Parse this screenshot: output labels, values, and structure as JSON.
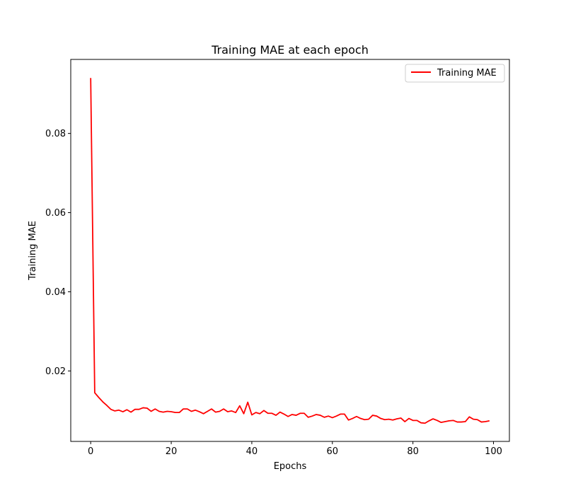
{
  "chart_data": {
    "type": "line",
    "title": "Training MAE at each epoch",
    "xlabel": "Epochs",
    "ylabel": "Training MAE",
    "xlim": [
      -4.95,
      103.95
    ],
    "ylim": [
      0.0022,
      0.0987
    ],
    "xticks": [
      0,
      20,
      40,
      60,
      80,
      100
    ],
    "xtick_labels": [
      "0",
      "20",
      "40",
      "60",
      "80",
      "100"
    ],
    "yticks": [
      0.02,
      0.04,
      0.06,
      0.08
    ],
    "ytick_labels": [
      "0.02",
      "0.04",
      "0.06",
      "0.08"
    ],
    "grid": false,
    "legend_position": "top-right",
    "series": [
      {
        "name": "Training MAE",
        "color": "#ff0000",
        "x": [
          0,
          1,
          2,
          3,
          4,
          5,
          6,
          7,
          8,
          9,
          10,
          11,
          12,
          13,
          14,
          15,
          16,
          17,
          18,
          19,
          20,
          21,
          22,
          23,
          24,
          25,
          26,
          27,
          28,
          29,
          30,
          31,
          32,
          33,
          34,
          35,
          36,
          37,
          38,
          39,
          40,
          41,
          42,
          43,
          44,
          45,
          46,
          47,
          48,
          49,
          50,
          51,
          52,
          53,
          54,
          55,
          56,
          57,
          58,
          59,
          60,
          61,
          62,
          63,
          64,
          65,
          66,
          67,
          68,
          69,
          70,
          71,
          72,
          73,
          74,
          75,
          76,
          77,
          78,
          79,
          80,
          81,
          82,
          83,
          84,
          85,
          86,
          87,
          88,
          89,
          90,
          91,
          92,
          93,
          94,
          95,
          96,
          97,
          98,
          99
        ],
        "y": [
          0.094,
          0.0145,
          0.0133,
          0.0122,
          0.0113,
          0.0103,
          0.0099,
          0.0101,
          0.0097,
          0.0102,
          0.0096,
          0.0103,
          0.0103,
          0.0107,
          0.0106,
          0.0098,
          0.0104,
          0.0098,
          0.0096,
          0.0098,
          0.0097,
          0.0095,
          0.0095,
          0.0104,
          0.0104,
          0.0098,
          0.0101,
          0.0097,
          0.0092,
          0.0098,
          0.0104,
          0.0096,
          0.0098,
          0.0104,
          0.0097,
          0.0099,
          0.0095,
          0.0112,
          0.0092,
          0.0121,
          0.0089,
          0.0095,
          0.0092,
          0.01,
          0.0093,
          0.0093,
          0.0088,
          0.0096,
          0.0091,
          0.0085,
          0.009,
          0.0088,
          0.0093,
          0.0093,
          0.0083,
          0.0086,
          0.009,
          0.0088,
          0.0083,
          0.0086,
          0.0082,
          0.0086,
          0.0091,
          0.0091,
          0.0076,
          0.008,
          0.0085,
          0.008,
          0.0077,
          0.0078,
          0.0088,
          0.0086,
          0.008,
          0.0077,
          0.0078,
          0.0076,
          0.0079,
          0.0081,
          0.0072,
          0.008,
          0.0075,
          0.0075,
          0.0069,
          0.0068,
          0.0074,
          0.0079,
          0.0075,
          0.007,
          0.0072,
          0.0074,
          0.0075,
          0.0071,
          0.0071,
          0.0072,
          0.0084,
          0.0078,
          0.0077,
          0.0071,
          0.0072,
          0.0074
        ]
      }
    ]
  }
}
